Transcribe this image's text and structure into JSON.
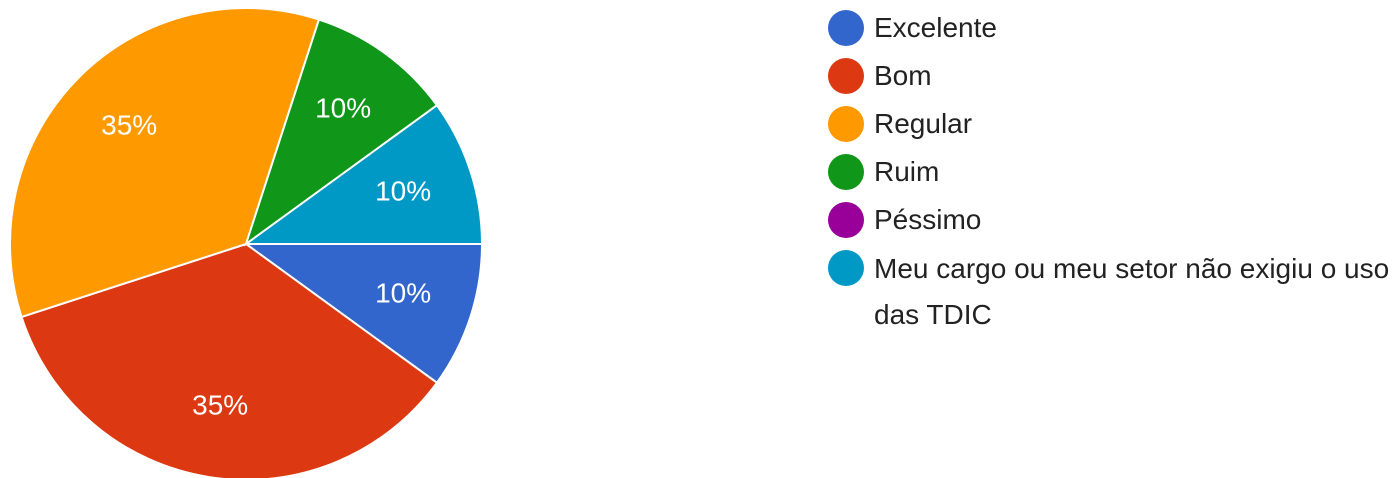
{
  "chart_data": {
    "type": "pie",
    "title": "",
    "series": [
      {
        "values": [
          10,
          35,
          35,
          10,
          0,
          10
        ]
      }
    ],
    "categories": [
      "Excelente",
      "Bom",
      "Regular",
      "Ruim",
      "Péssimo",
      "Meu cargo ou meu setor não exigiu o uso das TDIC"
    ],
    "values": [
      10,
      35,
      35,
      10,
      0,
      10
    ],
    "data_labels": [
      "10%",
      "35%",
      "35%",
      "10%",
      "",
      "10%"
    ],
    "colors": [
      "#3366cc",
      "#dc3912",
      "#ff9900",
      "#109618",
      "#990099",
      "#0099c6"
    ],
    "legend_position": "right"
  },
  "legend": {
    "items": [
      {
        "label": "Excelente",
        "color": "#3366cc"
      },
      {
        "label": "Bom",
        "color": "#dc3912"
      },
      {
        "label": "Regular",
        "color": "#ff9900"
      },
      {
        "label": "Ruim",
        "color": "#109618"
      },
      {
        "label": "Péssimo",
        "color": "#990099"
      },
      {
        "label": "Meu cargo ou meu setor não exigiu o uso das TDIC",
        "color": "#0099c6"
      }
    ]
  }
}
